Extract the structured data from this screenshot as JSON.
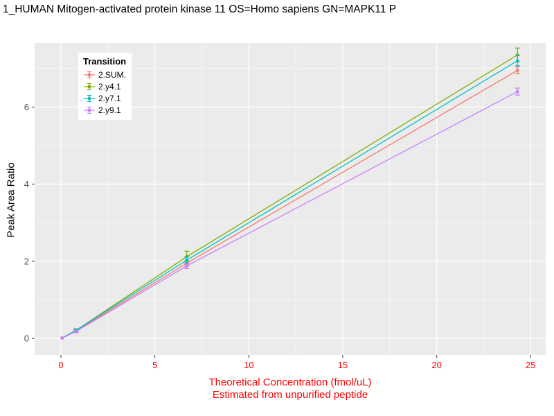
{
  "title": "1_HUMAN Mitogen-activated protein kinase 11 OS=Homo sapiens GN=MAPK11 P",
  "axes": {
    "y_label": "Peak Area Ratio",
    "x_label_line1": "Theoretical Concentration (fmol/uL)",
    "x_label_line2": "Estimated from unpurified peptide"
  },
  "legend": {
    "title": "Transition"
  },
  "colors": {
    "panel_bg": "#ebebeb",
    "grid": "#ffffff",
    "x_axis_text": "#ff0000",
    "y_axis_text": "#4d4d4d",
    "tick_mark": "#333333"
  },
  "chart_data": {
    "type": "line",
    "title": "1_HUMAN Mitogen-activated protein kinase 11 OS=Homo sapiens GN=MAPK11 P",
    "xlabel": "Theoretical Concentration (fmol/uL) — Estimated from unpurified peptide",
    "ylabel": "Peak Area Ratio",
    "x": [
      0.06,
      0.8,
      6.7,
      24.3
    ],
    "x_ticks": [
      0,
      5,
      10,
      15,
      20,
      25
    ],
    "y_ticks": [
      0,
      2,
      4,
      6
    ],
    "x_minor": [
      2.5,
      7.5,
      12.5,
      17.5,
      22.5
    ],
    "y_minor": [
      1,
      3,
      5,
      7
    ],
    "xlim": [
      -1.4,
      25.8
    ],
    "ylim": [
      -0.43,
      7.66
    ],
    "legend_title": "Transition",
    "legend_position": "inside-top-left",
    "grid": true,
    "series": [
      {
        "name": "2.SUM.",
        "color": "#F8766D",
        "values": [
          0.01,
          0.19,
          1.95,
          6.95
        ],
        "err": [
          0.01,
          0.03,
          0.06,
          0.09
        ]
      },
      {
        "name": "2.y4.1",
        "color": "#7CAE00",
        "values": [
          0.01,
          0.21,
          2.12,
          7.35
        ],
        "err": [
          0.01,
          0.03,
          0.14,
          0.18
        ]
      },
      {
        "name": "2.y7.1",
        "color": "#00BFC4",
        "values": [
          0.01,
          0.21,
          2.03,
          7.2
        ],
        "err": [
          0.01,
          0.04,
          0.09,
          0.13
        ]
      },
      {
        "name": "2.y9.1",
        "color": "#C77CFF",
        "values": [
          0.01,
          0.18,
          1.88,
          6.4
        ],
        "err": [
          0.01,
          0.03,
          0.07,
          0.09
        ]
      }
    ]
  }
}
